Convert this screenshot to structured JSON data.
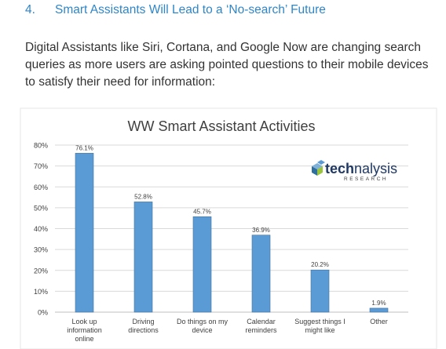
{
  "article": {
    "heading_number": "4.",
    "heading_text": "Smart Assistants Will Lead to a ‘No-search’ Future",
    "intro": "Digital Assistants like Siri, Cortana, and Google Now are changing search queries as more users are asking pointed questions to their mobile devices to satisfy their need for information:"
  },
  "logo": {
    "text_a": "tech",
    "text_b": "nalysis",
    "subtext": "RESEARCH"
  },
  "colors": {
    "heading": "#2e86c8",
    "bar": "#5b9bd5",
    "bar_edge": "#41719c",
    "grid": "#d9d9d9"
  },
  "chart_data": {
    "type": "bar",
    "title": "WW Smart Assistant Activities",
    "categories": [
      [
        "Look up",
        "information",
        "online"
      ],
      [
        "Driving",
        "directions"
      ],
      [
        "Do things on my",
        "device"
      ],
      [
        "Calendar",
        "reminders"
      ],
      [
        "Suggest things I",
        "might like"
      ],
      [
        "Other"
      ]
    ],
    "values": [
      76.1,
      52.8,
      45.7,
      36.9,
      20.2,
      1.9
    ],
    "value_labels": [
      "76.1%",
      "52.8%",
      "45.7%",
      "36.9%",
      "20.2%",
      "1.9%"
    ],
    "yticks": [
      "0%",
      "10%",
      "20%",
      "30%",
      "40%",
      "50%",
      "60%",
      "70%",
      "80%"
    ],
    "ylim": [
      0,
      80
    ],
    "grid": true,
    "legend": "none"
  }
}
